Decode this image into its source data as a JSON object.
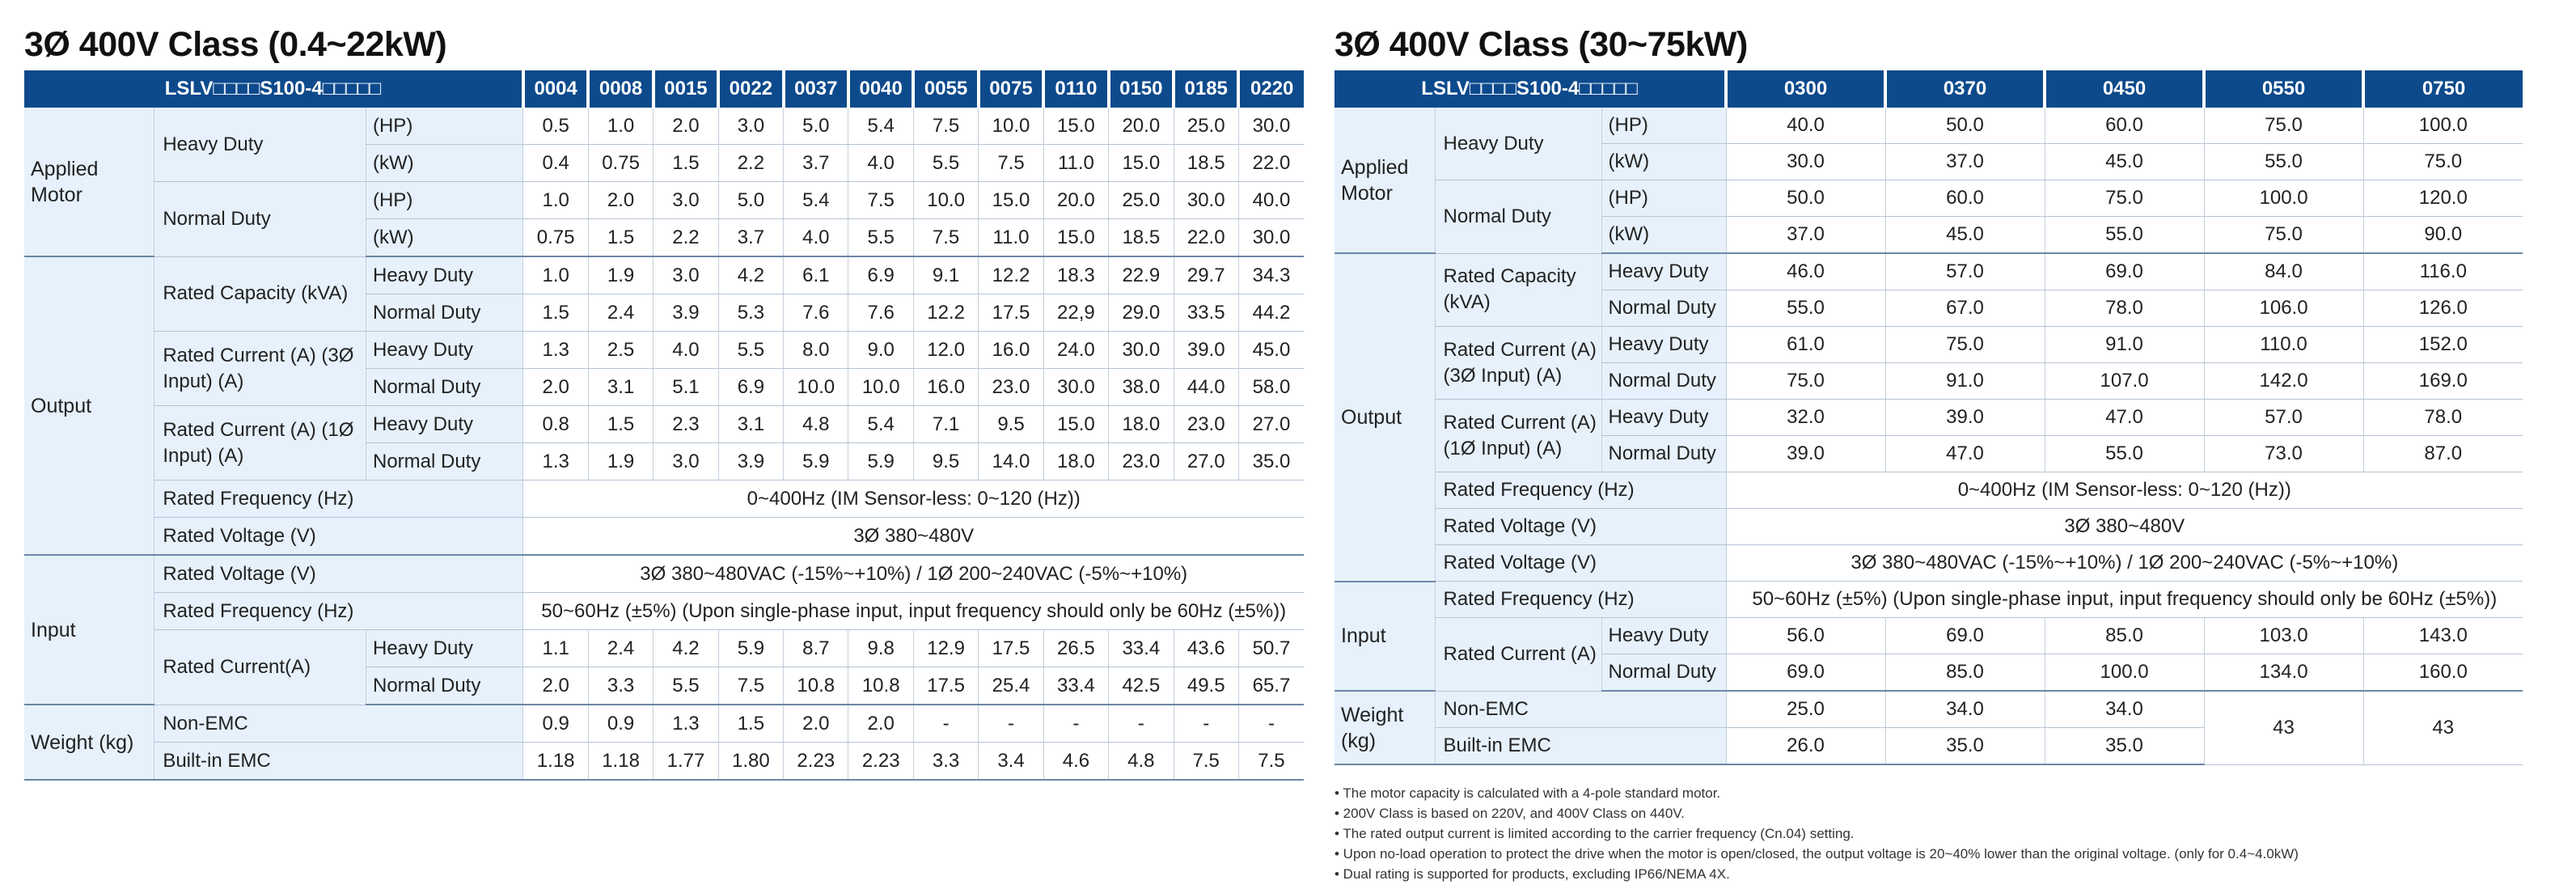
{
  "left": {
    "title": "3Ø 400V Class (0.4~22kW)",
    "model_label": "LSLV□□□□S100-4□□□□□",
    "models": [
      "0004",
      "0008",
      "0015",
      "0022",
      "0037",
      "0040",
      "0055",
      "0075",
      "0110",
      "0150",
      "0185",
      "0220"
    ],
    "labels": {
      "applied_motor": "Applied Motor",
      "heavy_duty": "Heavy Duty",
      "normal_duty": "Normal Duty",
      "hp": "(HP)",
      "kw": "(kW)",
      "output": "Output",
      "rated_capacity": "Rated Capacity (kVA)",
      "rated_current_3": "Rated Current (A) (3Ø Input) (A)",
      "rated_current_1": "Rated Current (A) (1Ø Input) (A)",
      "rated_frequency": "Rated Frequency (Hz)",
      "rated_voltage": "Rated Voltage (V)",
      "input": "Input",
      "input_rated_voltage": "Rated Voltage (V)",
      "input_rated_frequency": "Rated Frequency (Hz)",
      "input_rated_current": "Rated Current(A)",
      "weight": "Weight (kg)",
      "non_emc": "Non-EMC",
      "built_in_emc": "Built-in EMC"
    },
    "motor_hd_hp": [
      "0.5",
      "1.0",
      "2.0",
      "3.0",
      "5.0",
      "5.4",
      "7.5",
      "10.0",
      "15.0",
      "20.0",
      "25.0",
      "30.0"
    ],
    "motor_hd_kw": [
      "0.4",
      "0.75",
      "1.5",
      "2.2",
      "3.7",
      "4.0",
      "5.5",
      "7.5",
      "11.0",
      "15.0",
      "18.5",
      "22.0"
    ],
    "motor_nd_hp": [
      "1.0",
      "2.0",
      "3.0",
      "5.0",
      "5.4",
      "7.5",
      "10.0",
      "15.0",
      "20.0",
      "25.0",
      "30.0",
      "40.0"
    ],
    "motor_nd_kw": [
      "0.75",
      "1.5",
      "2.2",
      "3.7",
      "4.0",
      "5.5",
      "7.5",
      "11.0",
      "15.0",
      "18.5",
      "22.0",
      "30.0"
    ],
    "cap_hd": [
      "1.0",
      "1.9",
      "3.0",
      "4.2",
      "6.1",
      "6.9",
      "9.1",
      "12.2",
      "18.3",
      "22.9",
      "29.7",
      "34.3"
    ],
    "cap_nd": [
      "1.5",
      "2.4",
      "3.9",
      "5.3",
      "7.6",
      "7.6",
      "12.2",
      "17.5",
      "22,9",
      "29.0",
      "33.5",
      "44.2"
    ],
    "cur3_hd": [
      "1.3",
      "2.5",
      "4.0",
      "5.5",
      "8.0",
      "9.0",
      "12.0",
      "16.0",
      "24.0",
      "30.0",
      "39.0",
      "45.0"
    ],
    "cur3_nd": [
      "2.0",
      "3.1",
      "5.1",
      "6.9",
      "10.0",
      "10.0",
      "16.0",
      "23.0",
      "30.0",
      "38.0",
      "44.0",
      "58.0"
    ],
    "cur1_hd": [
      "0.8",
      "1.5",
      "2.3",
      "3.1",
      "4.8",
      "5.4",
      "7.1",
      "9.5",
      "15.0",
      "18.0",
      "23.0",
      "27.0"
    ],
    "cur1_nd": [
      "1.3",
      "1.9",
      "3.0",
      "3.9",
      "5.9",
      "5.9",
      "9.5",
      "14.0",
      "18.0",
      "23.0",
      "27.0",
      "35.0"
    ],
    "out_freq": "0~400Hz (IM Sensor-less: 0~120 (Hz))",
    "out_volt": "3Ø 380~480V",
    "in_volt": "3Ø 380~480VAC (-15%~+10%) / 1Ø 200~240VAC (-5%~+10%)",
    "in_freq": "50~60Hz (±5%) (Upon single-phase input, input frequency should only be 60Hz (±5%))",
    "in_cur_hd": [
      "1.1",
      "2.4",
      "4.2",
      "5.9",
      "8.7",
      "9.8",
      "12.9",
      "17.5",
      "26.5",
      "33.4",
      "43.6",
      "50.7"
    ],
    "in_cur_nd": [
      "2.0",
      "3.3",
      "5.5",
      "7.5",
      "10.8",
      "10.8",
      "17.5",
      "25.4",
      "33.4",
      "42.5",
      "49.5",
      "65.7"
    ],
    "w_non_emc": [
      "0.9",
      "0.9",
      "1.3",
      "1.5",
      "2.0",
      "2.0",
      "-",
      "-",
      "-",
      "-",
      "-",
      "-"
    ],
    "w_emc": [
      "1.18",
      "1.18",
      "1.77",
      "1.80",
      "2.23",
      "2.23",
      "3.3",
      "3.4",
      "4.6",
      "4.8",
      "7.5",
      "7.5"
    ]
  },
  "right": {
    "title": "3Ø 400V Class (30~75kW)",
    "model_label": "LSLV□□□□S100-4□□□□□",
    "models": [
      "0300",
      "0370",
      "0450",
      "0550",
      "0750"
    ],
    "labels": {
      "applied_motor": "Applied Motor",
      "heavy_duty": "Heavy Duty",
      "normal_duty": "Normal Duty",
      "hp": "(HP)",
      "kw": "(kW)",
      "output": "Output",
      "rated_capacity": "Rated Capacity (kVA)",
      "rated_current_3": "Rated Current (A) (3Ø Input) (A)",
      "rated_current_1": "Rated Current (A) (1Ø Input) (A)",
      "rated_frequency": "Rated Frequency (Hz)",
      "rated_voltage": "Rated Voltage (V)",
      "input": "Input",
      "input_rated_voltage": "Rated Voltage (V)",
      "input_rated_frequency": "Rated Frequency (Hz)",
      "input_rated_current": "Rated Current (A)",
      "weight": "Weight (kg)",
      "non_emc": "Non-EMC",
      "built_in_emc": "Built-in EMC"
    },
    "motor_hd_hp": [
      "40.0",
      "50.0",
      "60.0",
      "75.0",
      "100.0"
    ],
    "motor_hd_kw": [
      "30.0",
      "37.0",
      "45.0",
      "55.0",
      "75.0"
    ],
    "motor_nd_hp": [
      "50.0",
      "60.0",
      "75.0",
      "100.0",
      "120.0"
    ],
    "motor_nd_kw": [
      "37.0",
      "45.0",
      "55.0",
      "75.0",
      "90.0"
    ],
    "cap_hd": [
      "46.0",
      "57.0",
      "69.0",
      "84.0",
      "116.0"
    ],
    "cap_nd": [
      "55.0",
      "67.0",
      "78.0",
      "106.0",
      "126.0"
    ],
    "cur3_hd": [
      "61.0",
      "75.0",
      "91.0",
      "110.0",
      "152.0"
    ],
    "cur3_nd": [
      "75.0",
      "91.0",
      "107.0",
      "142.0",
      "169.0"
    ],
    "cur1_hd": [
      "32.0",
      "39.0",
      "47.0",
      "57.0",
      "78.0"
    ],
    "cur1_nd": [
      "39.0",
      "47.0",
      "55.0",
      "73.0",
      "87.0"
    ],
    "out_freq": "0~400Hz (IM Sensor-less: 0~120 (Hz))",
    "out_volt": "3Ø 380~480V",
    "in_volt": "3Ø 380~480VAC (-15%~+10%) / 1Ø 200~240VAC (-5%~+10%)",
    "in_freq": "50~60Hz (±5%) (Upon single-phase input, input frequency should only be 60Hz (±5%))",
    "in_cur_hd": [
      "56.0",
      "69.0",
      "85.0",
      "103.0",
      "143.0"
    ],
    "in_cur_nd": [
      "69.0",
      "85.0",
      "100.0",
      "134.0",
      "160.0"
    ],
    "w_non_emc": [
      "25.0",
      "34.0",
      "34.0"
    ],
    "w_emc": [
      "26.0",
      "35.0",
      "35.0"
    ],
    "w_shared": [
      "43",
      "43"
    ]
  },
  "notes": [
    "• The motor capacity is calculated with a 4-pole standard motor.",
    "• 200V Class is based on 220V, and 400V Class on 440V.",
    "• The rated output current is limited according to the carrier frequency (Cn.04) setting.",
    "• Upon no-load operation to protect the drive when the motor is open/closed, the output voltage is 20~40% lower than the original voltage. (only for 0.4~4.0kW)",
    "• Dual rating is supported for products, excluding IP66/NEMA 4X."
  ]
}
